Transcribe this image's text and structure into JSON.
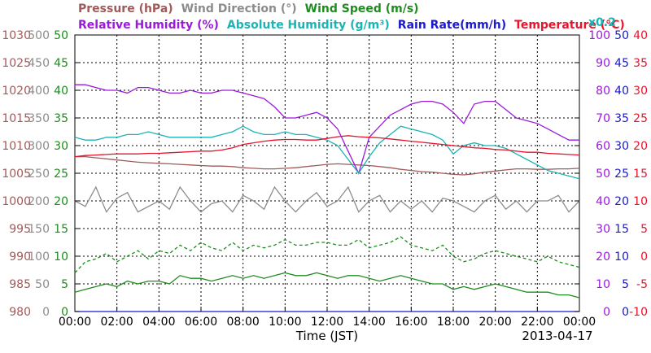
{
  "chart_data": {
    "type": "line",
    "date": "2013-04-17",
    "xlabel": "Time (JST)",
    "x": [
      "00:00",
      "00:30",
      "01:00",
      "01:30",
      "02:00",
      "02:30",
      "03:00",
      "03:30",
      "04:00",
      "04:30",
      "05:00",
      "05:30",
      "06:00",
      "06:30",
      "07:00",
      "07:30",
      "08:00",
      "08:30",
      "09:00",
      "09:30",
      "10:00",
      "10:30",
      "11:00",
      "11:30",
      "12:00",
      "12:30",
      "13:00",
      "13:30",
      "14:00",
      "14:30",
      "15:00",
      "15:30",
      "16:00",
      "16:30",
      "17:00",
      "17:30",
      "18:00",
      "18:30",
      "19:00",
      "19:30",
      "20:00",
      "20:30",
      "21:00",
      "21:30",
      "22:00",
      "22:30",
      "23:00",
      "23:30",
      "24:00"
    ],
    "x_tick_labels": [
      "00:00",
      "02:00",
      "04:00",
      "06:00",
      "08:00",
      "10:00",
      "12:00",
      "14:00",
      "16:00",
      "18:00",
      "20:00",
      "22:00",
      "00:00"
    ],
    "legend_row1": [
      {
        "name": "Pressure (hPa)",
        "color": "#a05a5a"
      },
      {
        "name": "Wind Direction (°)",
        "color": "#8c8c8c"
      },
      {
        "name": "Wind Speed (m/s)",
        "color": "#1e8c1e"
      }
    ],
    "legend_row2": [
      {
        "name": "Relative Humidity (%)",
        "color": "#9a1adc"
      },
      {
        "name": "Absolute Humidity (g/m³)",
        "color": "#1ab4b4"
      },
      {
        "name": "Rain Rate(mm/h)",
        "color": "#1a1acc"
      },
      {
        "name": "Temperature (°C)",
        "color": "#e6142d"
      }
    ],
    "scale_note": "x0.2",
    "left_axes": [
      {
        "name": "pressure",
        "color": "#a05a5a",
        "ticks": [
          "1030",
          "1025",
          "1020",
          "1015",
          "1010",
          "1005",
          "1000",
          "995",
          "990",
          "985",
          "980"
        ]
      },
      {
        "name": "wind_direction",
        "color": "#8c8c8c",
        "ticks": [
          "500",
          "450",
          "400",
          "350",
          "300",
          "250",
          "200",
          "150",
          "100",
          "50",
          "0"
        ]
      },
      {
        "name": "wind_speed",
        "color": "#1e8c1e",
        "ticks": [
          "50",
          "45",
          "40",
          "35",
          "30",
          "25",
          "20",
          "15",
          "10",
          "5",
          "0"
        ]
      }
    ],
    "right_axes": [
      {
        "name": "relative_humidity",
        "color": "#9a1adc",
        "ticks": [
          "100",
          "90",
          "80",
          "70",
          "60",
          "50",
          "40",
          "30",
          "20",
          "10",
          "0"
        ]
      },
      {
        "name": "rain_rate",
        "color": "#1a1acc",
        "ticks": [
          "50",
          "45",
          "40",
          "35",
          "30",
          "25",
          "20",
          "15",
          "10",
          "5",
          "0"
        ]
      },
      {
        "name": "temperature",
        "color": "#e6142d",
        "ticks": [
          "40",
          "35",
          "30",
          "25",
          "20",
          "15",
          "10",
          "5",
          "0",
          "-5",
          "-10"
        ]
      }
    ],
    "grid": true,
    "series": [
      {
        "name": "Pressure (hPa)",
        "color": "#a05a5a",
        "style": "solid",
        "ylim": [
          980,
          1030
        ],
        "values": [
          1008.0,
          1008.0,
          1007.8,
          1007.6,
          1007.4,
          1007.2,
          1007.0,
          1006.9,
          1006.8,
          1006.7,
          1006.6,
          1006.5,
          1006.4,
          1006.3,
          1006.3,
          1006.2,
          1006.0,
          1005.9,
          1005.8,
          1005.8,
          1005.9,
          1006.0,
          1006.2,
          1006.4,
          1006.6,
          1006.7,
          1006.6,
          1006.5,
          1006.4,
          1006.2,
          1006.0,
          1005.7,
          1005.5,
          1005.3,
          1005.2,
          1005.0,
          1004.8,
          1004.7,
          1004.9,
          1005.2,
          1005.4,
          1005.6,
          1005.8,
          1005.8,
          1005.7,
          1005.7,
          1005.8,
          1005.8,
          1005.9
        ]
      },
      {
        "name": "Wind Direction (°)",
        "color": "#8c8c8c",
        "style": "solid",
        "ylim": [
          0,
          500
        ],
        "values": [
          200,
          190,
          225,
          180,
          205,
          215,
          180,
          190,
          200,
          185,
          225,
          200,
          180,
          195,
          200,
          180,
          210,
          200,
          185,
          225,
          200,
          180,
          200,
          215,
          190,
          200,
          225,
          180,
          200,
          210,
          180,
          200,
          185,
          200,
          180,
          205,
          200,
          190,
          180,
          200,
          210,
          185,
          200,
          180,
          200,
          200,
          210,
          180,
          200
        ]
      },
      {
        "name": "Wind Speed (m/s) dashed",
        "color": "#1e8c1e",
        "style": "dashed",
        "ylim": [
          0,
          50
        ],
        "values": [
          7.0,
          9.0,
          9.5,
          10.5,
          9.0,
          10.0,
          11.0,
          9.5,
          11.0,
          10.5,
          12.0,
          11.0,
          12.5,
          11.5,
          11.0,
          12.5,
          11.0,
          12.0,
          11.5,
          12.0,
          13.0,
          12.0,
          12.0,
          12.5,
          12.5,
          12.0,
          12.0,
          13.0,
          11.5,
          12.0,
          12.5,
          13.5,
          12.0,
          11.5,
          11.0,
          12.0,
          10.0,
          9.0,
          9.5,
          10.5,
          11.0,
          10.5,
          10.0,
          9.5,
          9.0,
          10.0,
          9.0,
          8.5,
          8.0
        ]
      },
      {
        "name": "Wind Speed (m/s) solid",
        "color": "#1e8c1e",
        "style": "solid",
        "ylim": [
          0,
          50
        ],
        "values": [
          3.5,
          4.0,
          4.5,
          5.0,
          4.5,
          5.5,
          5.0,
          5.5,
          5.5,
          5.0,
          6.5,
          6.0,
          6.0,
          5.5,
          6.0,
          6.5,
          6.0,
          6.5,
          6.0,
          6.5,
          7.0,
          6.5,
          6.5,
          7.0,
          6.5,
          6.0,
          6.5,
          6.5,
          6.0,
          5.5,
          6.0,
          6.5,
          6.0,
          5.5,
          5.0,
          5.0,
          4.0,
          4.5,
          4.0,
          4.5,
          5.0,
          4.5,
          4.0,
          3.5,
          3.5,
          3.5,
          3.0,
          3.0,
          2.5
        ]
      },
      {
        "name": "Relative Humidity (%)",
        "color": "#9a1adc",
        "style": "solid",
        "ylim": [
          0,
          100
        ],
        "values": [
          82,
          82,
          81,
          80,
          80,
          79,
          81,
          81,
          80,
          79,
          79,
          80,
          79,
          79,
          80,
          80,
          79,
          78,
          77,
          74,
          70,
          70,
          71,
          72,
          70,
          66,
          58,
          50,
          63,
          67,
          71,
          73,
          75,
          76,
          76,
          75,
          72,
          68,
          75,
          76,
          76,
          73,
          70,
          69,
          68,
          66,
          64,
          62,
          62
        ]
      },
      {
        "name": "Absolute Humidity (g/m³)",
        "color": "#1ab4b4",
        "style": "solid",
        "ylim": [
          0,
          50
        ],
        "values": [
          31.5,
          31.0,
          31.0,
          31.5,
          31.5,
          32.0,
          32.0,
          32.5,
          32.0,
          31.5,
          31.5,
          31.5,
          31.5,
          31.5,
          32.0,
          32.5,
          33.5,
          32.5,
          32.0,
          32.0,
          32.5,
          32.0,
          32.0,
          31.5,
          31.0,
          30.0,
          27.5,
          25.0,
          28.0,
          30.5,
          32.0,
          33.5,
          33.0,
          32.5,
          32.0,
          31.0,
          28.5,
          30.0,
          30.5,
          30.0,
          30.0,
          29.5,
          28.5,
          27.5,
          26.5,
          25.5,
          25.0,
          24.5,
          24.0
        ]
      },
      {
        "name": "Rain Rate(mm/h)",
        "color": "#1a1acc",
        "style": "solid",
        "ylim": [
          0,
          50
        ],
        "values": [
          0,
          0,
          0,
          0,
          0,
          0,
          0,
          0,
          0,
          0,
          0,
          0,
          0,
          0,
          0,
          0,
          0,
          0,
          0,
          0,
          0,
          0,
          0,
          0,
          0,
          0,
          0,
          0,
          0,
          0,
          0,
          0,
          0,
          0,
          0,
          0,
          0,
          0,
          0,
          0,
          0,
          0,
          0,
          0,
          0,
          0,
          0,
          0,
          0
        ]
      },
      {
        "name": "Temperature (°C)",
        "color": "#e6142d",
        "style": "solid",
        "ylim": [
          -10,
          40
        ],
        "values": [
          18.0,
          18.2,
          18.3,
          18.4,
          18.5,
          18.5,
          18.5,
          18.6,
          18.6,
          18.7,
          18.8,
          18.9,
          19.0,
          19.0,
          19.2,
          19.6,
          20.2,
          20.5,
          20.8,
          21.0,
          21.1,
          21.1,
          21.0,
          21.0,
          21.3,
          21.6,
          21.8,
          21.6,
          21.5,
          21.4,
          21.2,
          21.0,
          20.8,
          20.6,
          20.4,
          20.2,
          20.0,
          19.8,
          19.6,
          19.5,
          19.3,
          19.2,
          19.0,
          18.8,
          18.8,
          18.6,
          18.5,
          18.4,
          18.3
        ]
      }
    ]
  }
}
